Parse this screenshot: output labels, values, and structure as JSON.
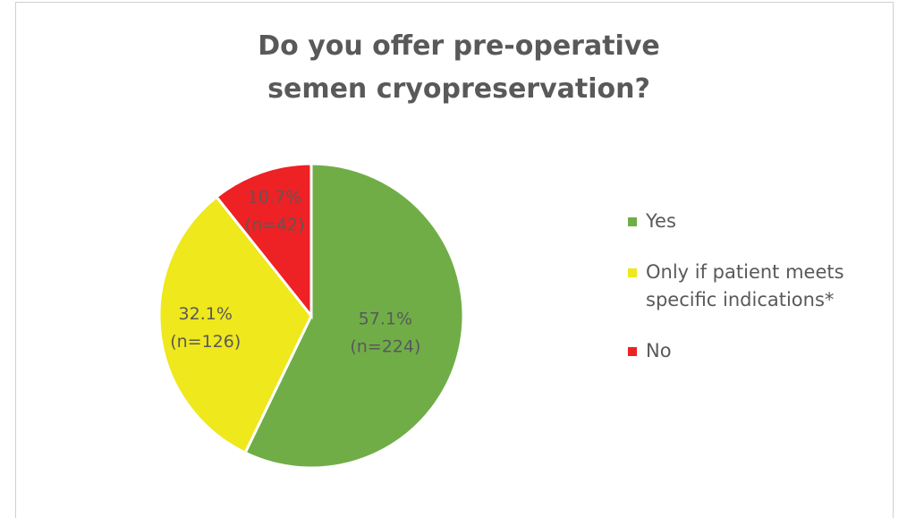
{
  "chart_data": {
    "type": "pie",
    "title": "Do you offer pre-operative semen cryopreservation?",
    "categories": [
      "Yes",
      "Only if patient meets specific indications*",
      "No"
    ],
    "values": [
      57.1,
      32.1,
      10.7
    ],
    "value_labels": [
      "57.1%",
      "32.1%",
      "10.7%"
    ],
    "counts": [
      224,
      126,
      42
    ],
    "count_labels": [
      "(n=224)",
      "(n=126)",
      "(n=42)"
    ],
    "colors": [
      "#70ad47",
      "#eee81c",
      "#ee2124"
    ],
    "legend": "right"
  }
}
